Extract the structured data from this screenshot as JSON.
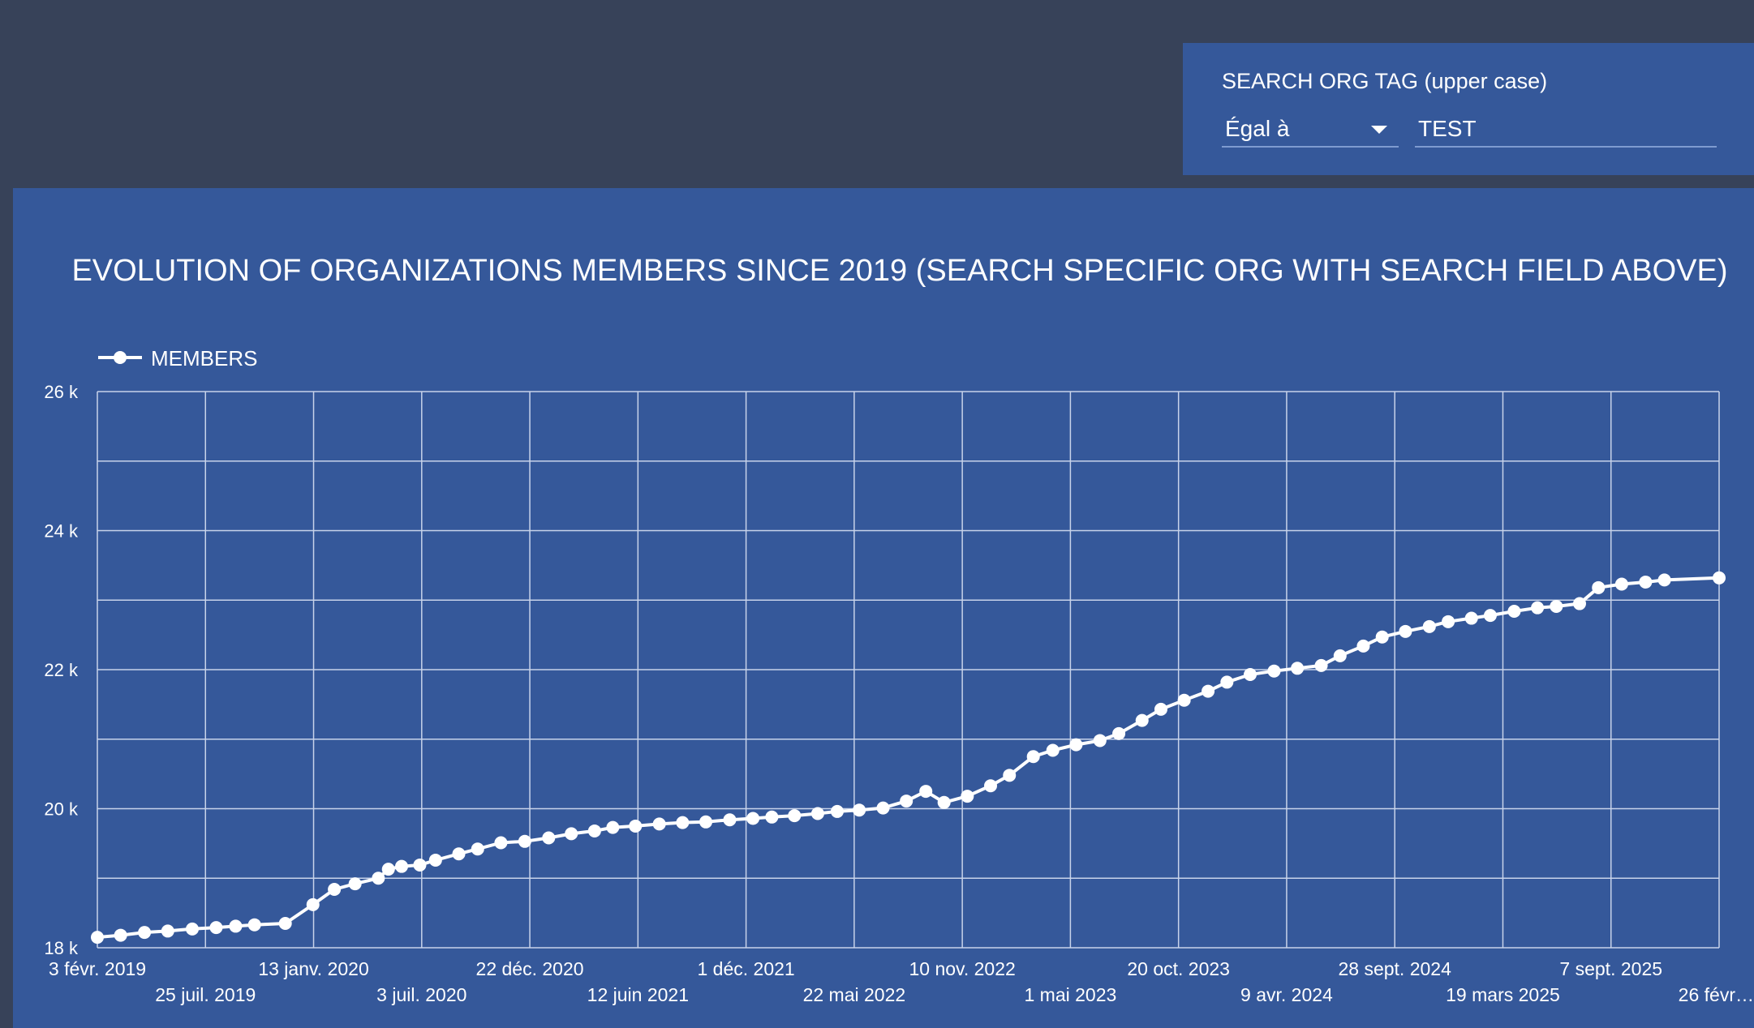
{
  "filter": {
    "label": "SEARCH ORG TAG (upper case)",
    "operator": "Égal à",
    "value": "TEST"
  },
  "colors": {
    "page_background": "#374259",
    "panel_background": "#35589a",
    "line": "#ffffff",
    "grid": "#c8d3ea"
  },
  "chart_data": {
    "type": "line",
    "title": "EVOLUTION OF ORGANIZATIONS MEMBERS SINCE 2019 (SEARCH SPECIFIC ORG WITH SEARCH FIELD ABOVE)",
    "legend": {
      "position": "top-left",
      "entries": [
        "MEMBERS"
      ]
    },
    "grid": true,
    "ylim": [
      18000,
      26000
    ],
    "yticks": [
      18000,
      20000,
      22000,
      24000,
      26000
    ],
    "ytick_labels": [
      "18 k",
      "20 k",
      "22 k",
      "24 k",
      "26 k"
    ],
    "xlim": [
      "2019-02-03",
      "2026-02-26"
    ],
    "xticks": [
      "2019-02-03",
      "2019-07-25",
      "2020-01-13",
      "2020-07-03",
      "2020-12-22",
      "2021-06-12",
      "2021-12-01",
      "2022-05-22",
      "2022-11-10",
      "2023-05-01",
      "2023-10-20",
      "2024-04-09",
      "2024-09-28",
      "2025-03-19",
      "2025-09-07",
      "2026-02-26"
    ],
    "xtick_labels": [
      "3 févr. 2019",
      "25 juil. 2019",
      "13 janv. 2020",
      "3 juil. 2020",
      "22 déc. 2020",
      "12 juin 2021",
      "1 déc. 2021",
      "22 mai 2022",
      "10 nov. 2022",
      "1 mai 2023",
      "20 oct. 2023",
      "9 avr. 2024",
      "28 sept. 2024",
      "19 mars 2025",
      "7 sept. 2025",
      "26 févr…"
    ],
    "series": [
      {
        "name": "MEMBERS",
        "x": [
          "2019-02-03",
          "2019-03-12",
          "2019-04-19",
          "2019-05-26",
          "2019-07-04",
          "2019-08-11",
          "2019-09-11",
          "2019-10-11",
          "2019-11-29",
          "2020-01-12",
          "2020-02-15",
          "2020-03-19",
          "2020-04-25",
          "2020-05-11",
          "2020-06-01",
          "2020-06-30",
          "2020-07-25",
          "2020-08-31",
          "2020-09-30",
          "2020-11-06",
          "2020-12-14",
          "2021-01-21",
          "2021-02-26",
          "2021-04-04",
          "2021-05-03",
          "2021-06-08",
          "2021-07-16",
          "2021-08-22",
          "2021-09-28",
          "2021-11-05",
          "2021-12-12",
          "2022-01-11",
          "2022-02-16",
          "2022-03-25",
          "2022-04-25",
          "2022-05-30",
          "2022-07-07",
          "2022-08-13",
          "2022-09-13",
          "2022-10-12",
          "2022-11-18",
          "2022-12-25",
          "2023-01-24",
          "2023-03-03",
          "2023-04-03",
          "2023-05-10",
          "2023-06-17",
          "2023-07-17",
          "2023-08-23",
          "2023-09-22",
          "2023-10-29",
          "2023-12-06",
          "2024-01-05",
          "2024-02-11",
          "2024-03-20",
          "2024-04-26",
          "2024-06-03",
          "2024-07-03",
          "2024-08-09",
          "2024-09-08",
          "2024-10-15",
          "2024-11-22",
          "2024-12-22",
          "2025-01-28",
          "2025-02-27",
          "2025-04-06",
          "2025-05-13",
          "2025-06-12",
          "2025-07-19",
          "2025-08-18",
          "2025-09-24",
          "2025-11-01",
          "2025-12-01",
          "2026-02-26"
        ],
        "values": [
          18150,
          18180,
          18220,
          18240,
          18270,
          18290,
          18310,
          18330,
          18350,
          18620,
          18840,
          18920,
          19000,
          19130,
          19170,
          19190,
          19260,
          19350,
          19420,
          19510,
          19530,
          19580,
          19640,
          19680,
          19730,
          19750,
          19780,
          19800,
          19810,
          19840,
          19860,
          19880,
          19900,
          19930,
          19960,
          19980,
          20010,
          20110,
          20250,
          20090,
          20180,
          20330,
          20480,
          20750,
          20840,
          20920,
          20980,
          21080,
          21270,
          21430,
          21560,
          21690,
          21820,
          21930,
          21980,
          22020,
          22060,
          22200,
          22340,
          22470,
          22550,
          22620,
          22690,
          22740,
          22780,
          22840,
          22890,
          22910,
          22950,
          23180,
          23230,
          23260,
          23290,
          23320
        ]
      }
    ]
  }
}
